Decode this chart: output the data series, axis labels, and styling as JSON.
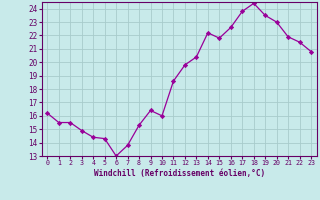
{
  "x": [
    0,
    1,
    2,
    3,
    4,
    5,
    6,
    7,
    8,
    9,
    10,
    11,
    12,
    13,
    14,
    15,
    16,
    17,
    18,
    19,
    20,
    21,
    22,
    23
  ],
  "y": [
    16.2,
    15.5,
    15.5,
    14.9,
    14.4,
    14.3,
    13.0,
    13.8,
    15.3,
    16.4,
    16.0,
    18.6,
    19.8,
    20.4,
    22.2,
    21.8,
    22.6,
    23.8,
    24.4,
    23.5,
    23.0,
    21.9,
    21.5,
    20.8
  ],
  "line_color": "#990099",
  "marker": "D",
  "marker_size": 2.2,
  "bg_color": "#c8eaea",
  "grid_color": "#a8cccc",
  "xlabel": "Windchill (Refroidissement éolien,°C)",
  "xlabel_color": "#660066",
  "tick_color": "#660066",
  "border_color": "#660066",
  "ylim": [
    13,
    24.5
  ],
  "xlim": [
    -0.5,
    23.5
  ],
  "yticks": [
    13,
    14,
    15,
    16,
    17,
    18,
    19,
    20,
    21,
    22,
    23,
    24
  ],
  "xticks": [
    0,
    1,
    2,
    3,
    4,
    5,
    6,
    7,
    8,
    9,
    10,
    11,
    12,
    13,
    14,
    15,
    16,
    17,
    18,
    19,
    20,
    21,
    22,
    23
  ],
  "xtick_labels": [
    "0",
    "1",
    "2",
    "3",
    "4",
    "5",
    "6",
    "7",
    "8",
    "9",
    "10",
    "11",
    "12",
    "13",
    "14",
    "15",
    "16",
    "17",
    "18",
    "19",
    "20",
    "21",
    "22",
    "23"
  ],
  "xlabel_fontsize": 5.5,
  "ytick_fontsize": 5.5,
  "xtick_fontsize": 4.8
}
